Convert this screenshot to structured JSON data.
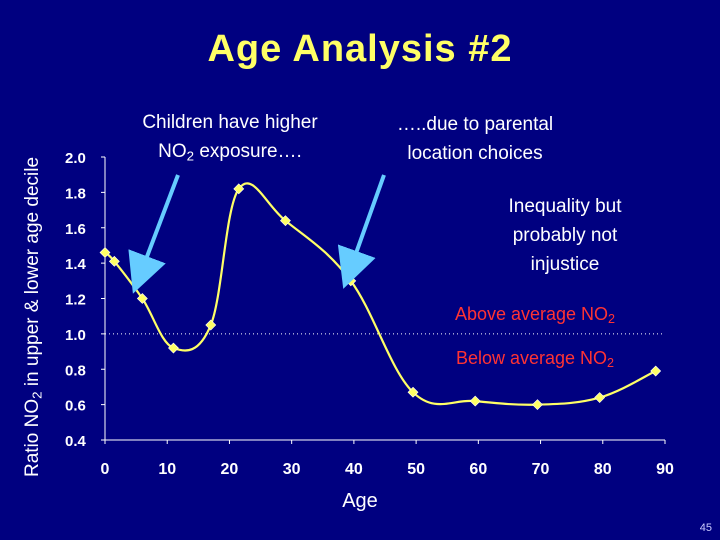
{
  "title": "Age Analysis #2",
  "page_number": "45",
  "annotations": {
    "children_line1": "Children have higher",
    "children_line2_pre": "NO",
    "children_line2_sub": "2",
    "children_line2_post": " exposure….",
    "parental_line1": "…..due to parental",
    "parental_line2": "location choices",
    "inequality_line1": "Inequality but",
    "inequality_line2": "probably not",
    "inequality_line3": "injustice",
    "above_pre": "Above average NO",
    "above_sub": "2",
    "below_pre": "Below average NO",
    "below_sub": "2"
  },
  "colors": {
    "background": "#000080",
    "title": "#ffff66",
    "line": "#ffff66",
    "arrow": "#66ccff",
    "reference": "#ff3333"
  },
  "chart_data": {
    "type": "line",
    "title": "Age Analysis #2",
    "xlabel": "Age",
    "ylabel_pre": "Ratio NO",
    "ylabel_sub": "2",
    "ylabel_post": " in upper & lower age decile",
    "xlim": [
      0,
      90
    ],
    "ylim": [
      0.4,
      2.0
    ],
    "xticks": [
      "0",
      "10",
      "20",
      "30",
      "40",
      "50",
      "60",
      "70",
      "80",
      "90"
    ],
    "yticks": [
      "0.4",
      "0.6",
      "0.8",
      "1.0",
      "1.2",
      "1.4",
      "1.6",
      "1.8",
      "2.0"
    ],
    "reference_line": 1.0,
    "series": [
      {
        "x": [
          0,
          1.5,
          6,
          11,
          17,
          21.5,
          29,
          39.5,
          49.5,
          59.5,
          69.5,
          79.5,
          88.5
        ],
        "values": [
          1.46,
          1.41,
          1.2,
          0.92,
          1.05,
          1.82,
          1.64,
          1.3,
          0.67,
          0.62,
          0.6,
          0.64,
          0.79
        ]
      }
    ],
    "grid": false
  }
}
